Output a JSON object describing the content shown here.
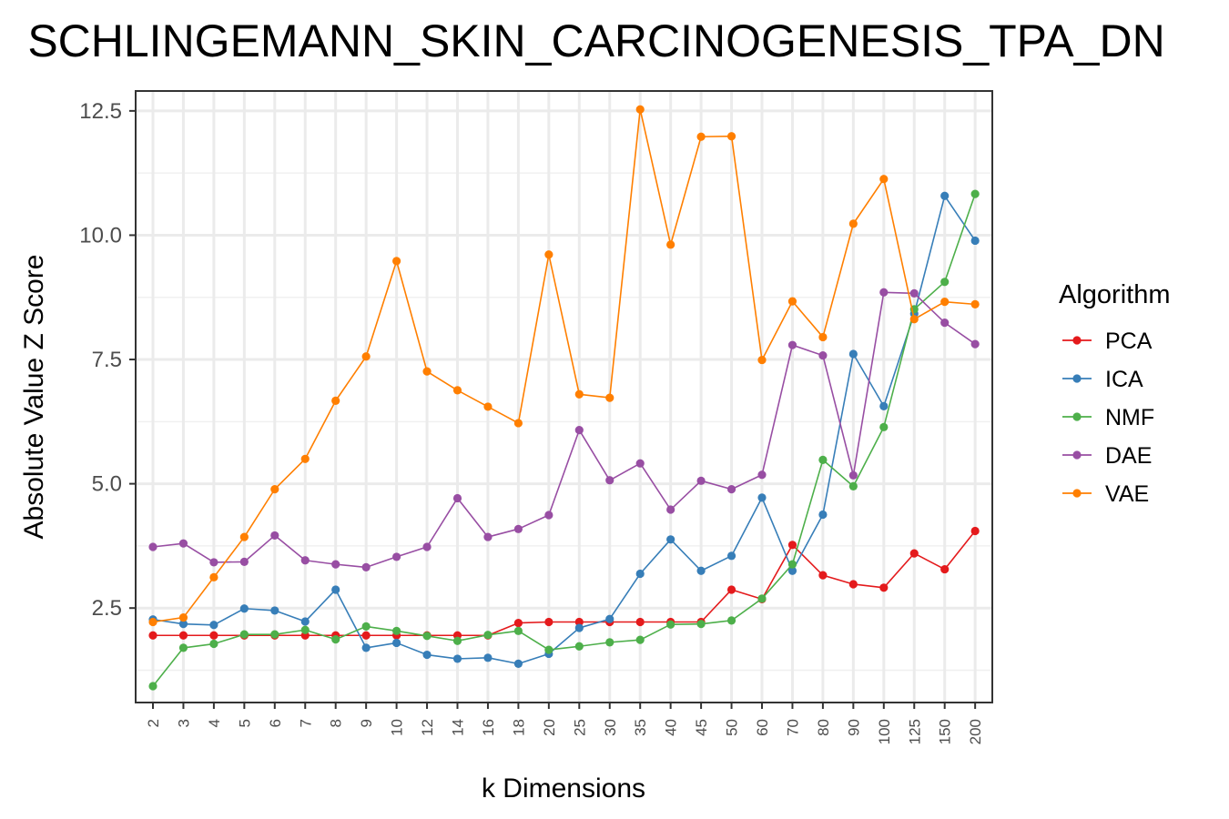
{
  "chart_data": {
    "type": "line",
    "title": "SCHLINGEMANN_SKIN_CARCINOGENESIS_TPA_DN",
    "xlabel": "k Dimensions",
    "ylabel": "Absolute Value Z Score",
    "categories": [
      "2",
      "3",
      "4",
      "5",
      "6",
      "7",
      "8",
      "9",
      "10",
      "12",
      "14",
      "16",
      "18",
      "20",
      "25",
      "30",
      "35",
      "40",
      "45",
      "50",
      "60",
      "70",
      "80",
      "90",
      "100",
      "125",
      "150",
      "200"
    ],
    "ylim": [
      0.6,
      12.9
    ],
    "yticks": [
      2.5,
      5.0,
      7.5,
      10.0,
      12.5
    ],
    "ytick_labels": [
      "2.5",
      "5.0",
      "7.5",
      "10.0",
      "12.5"
    ],
    "grid": true,
    "legend": {
      "title": "Algorithm",
      "position": "right"
    },
    "series": [
      {
        "name": "PCA",
        "color": "#E41A1C",
        "values": [
          1.95,
          1.95,
          1.95,
          1.95,
          1.95,
          1.95,
          1.95,
          1.95,
          1.95,
          1.95,
          1.95,
          1.95,
          2.2,
          2.22,
          2.22,
          2.22,
          2.22,
          2.22,
          2.22,
          2.87,
          2.68,
          3.77,
          3.16,
          2.98,
          2.91,
          3.6,
          3.28,
          4.05
        ]
      },
      {
        "name": "ICA",
        "color": "#377EB8",
        "values": [
          2.27,
          2.18,
          2.16,
          2.49,
          2.45,
          2.23,
          2.87,
          1.7,
          1.8,
          1.56,
          1.48,
          1.5,
          1.38,
          1.58,
          2.1,
          2.28,
          3.19,
          3.88,
          3.25,
          3.55,
          4.72,
          3.25,
          4.38,
          7.61,
          6.56,
          8.42,
          10.79,
          9.89
        ]
      },
      {
        "name": "NMF",
        "color": "#4DAF4A",
        "values": [
          0.93,
          1.7,
          1.78,
          1.97,
          1.97,
          2.06,
          1.87,
          2.13,
          2.04,
          1.94,
          1.84,
          1.96,
          2.04,
          1.66,
          1.73,
          1.81,
          1.86,
          2.17,
          2.18,
          2.25,
          2.69,
          3.38,
          5.48,
          4.95,
          6.14,
          8.51,
          9.06,
          10.83
        ]
      },
      {
        "name": "DAE",
        "color": "#984EA3",
        "values": [
          3.73,
          3.8,
          3.42,
          3.43,
          3.96,
          3.46,
          3.38,
          3.32,
          3.53,
          3.73,
          4.71,
          3.93,
          4.09,
          4.37,
          6.08,
          5.07,
          5.41,
          4.48,
          5.06,
          4.89,
          5.18,
          7.79,
          7.58,
          5.17,
          8.85,
          8.83,
          8.24,
          7.81
        ]
      },
      {
        "name": "VAE",
        "color": "#FF7F00",
        "values": [
          2.22,
          2.31,
          3.12,
          3.93,
          4.89,
          5.5,
          6.67,
          7.56,
          9.48,
          7.26,
          6.88,
          6.55,
          6.22,
          9.61,
          6.8,
          6.73,
          12.53,
          9.81,
          11.98,
          11.99,
          7.49,
          8.67,
          7.95,
          10.23,
          11.13,
          8.31,
          8.66,
          8.61
        ]
      }
    ]
  }
}
